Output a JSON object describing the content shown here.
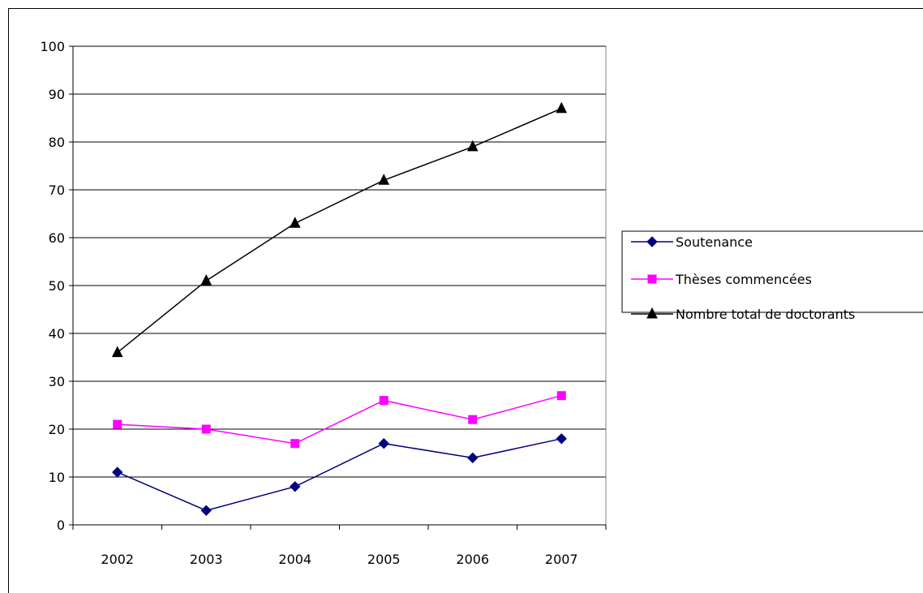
{
  "chart_data": {
    "type": "line",
    "title": "",
    "xlabel": "",
    "ylabel": "",
    "categories": [
      "2002",
      "2003",
      "2004",
      "2005",
      "2006",
      "2007"
    ],
    "ylim": [
      0,
      100
    ],
    "yticks": [
      0,
      10,
      20,
      30,
      40,
      50,
      60,
      70,
      80,
      90,
      100
    ],
    "grid": true,
    "legend_position": "right",
    "series": [
      {
        "name": "Soutenance",
        "values": [
          11,
          3,
          8,
          17,
          14,
          18
        ],
        "color": "#000080",
        "marker": "diamond"
      },
      {
        "name": "Thèses commencées",
        "values": [
          21,
          20,
          17,
          26,
          22,
          27
        ],
        "color": "#FF00FF",
        "marker": "square"
      },
      {
        "name": "Nombre total de doctorants",
        "values": [
          36,
          51,
          63,
          72,
          79,
          87
        ],
        "color": "#000000",
        "marker": "triangle"
      }
    ]
  }
}
